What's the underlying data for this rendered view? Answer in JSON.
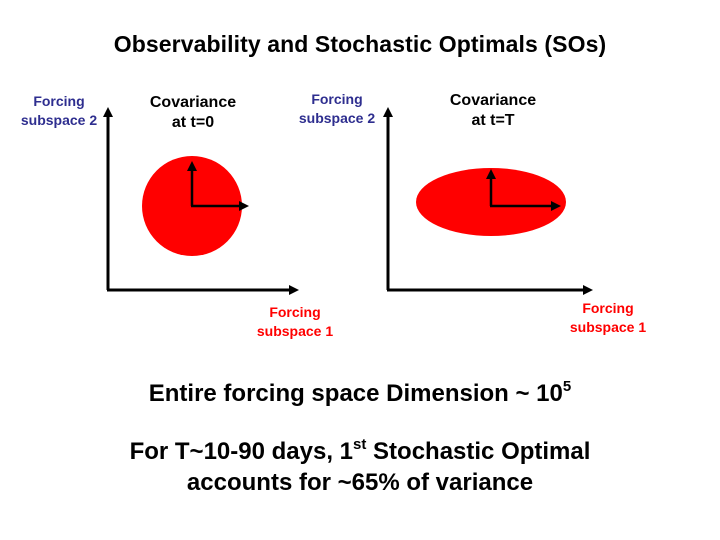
{
  "slide": {
    "title": "Observability and Stochastic Optimals (SOs)"
  },
  "diagrams": [
    {
      "id": "initial",
      "y_axis_label": [
        "Forcing",
        "subspace 2"
      ],
      "x_axis_label": [
        "Forcing",
        "subspace 1"
      ],
      "covariance_label": [
        "Covariance",
        "at t=0"
      ],
      "shape": "circle"
    },
    {
      "id": "final",
      "y_axis_label": [
        "Forcing",
        "subspace 2"
      ],
      "x_axis_label": [
        "Forcing",
        "subspace 1"
      ],
      "covariance_label": [
        "Covariance",
        "at t=T"
      ],
      "shape": "ellipse"
    }
  ],
  "colors": {
    "covariance_fill": "#ff0000",
    "y_axis_label": "#2e2e8f",
    "x_axis_label": "#ff0000",
    "axes": "#000000"
  },
  "statements": {
    "dimension_prefix": "Entire forcing space Dimension ~ 10",
    "dimension_exponent": "5",
    "variance_line1_prefix": "For T~10-90 days, 1",
    "variance_line1_sup": "st",
    "variance_line1_suffix": " Stochastic Optimal",
    "variance_line2": "accounts for ~65% of variance"
  }
}
